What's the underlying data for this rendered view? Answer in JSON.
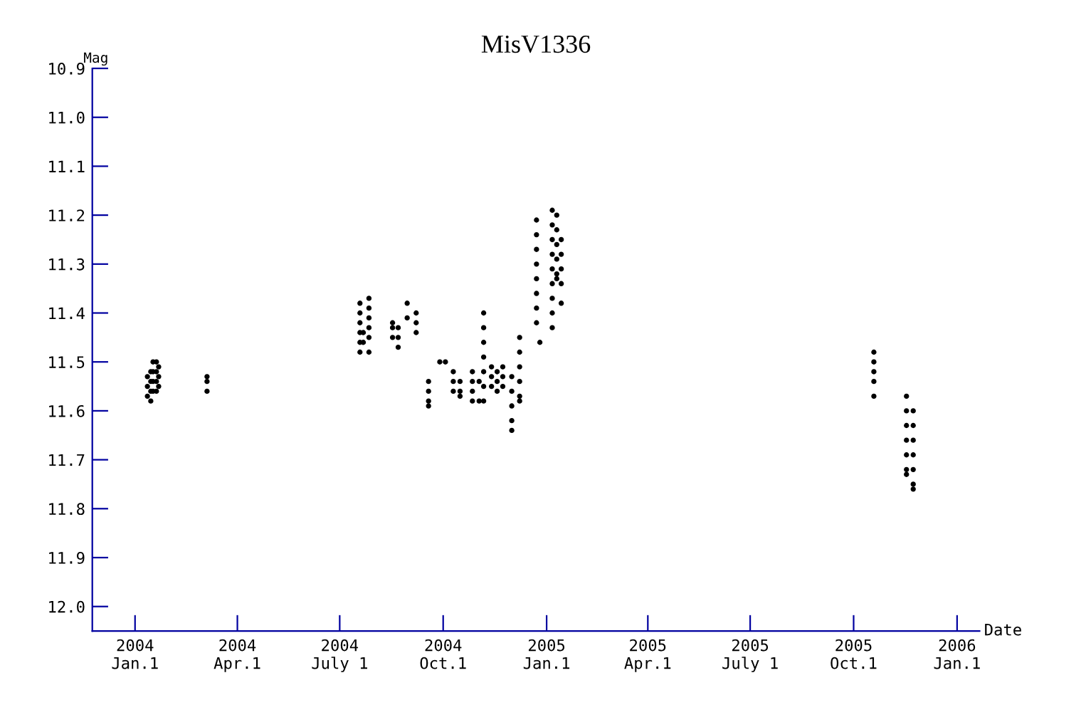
{
  "chart_data": {
    "type": "scatter",
    "title": "MisV1336",
    "xlabel": "Date",
    "ylabel": "Mag",
    "marker": "circle",
    "grid": false,
    "legend": false,
    "xlim": [
      "2003-11-24",
      "2006-01-21"
    ],
    "xticks": [
      {
        "value": "2004-01-01",
        "label": "2004\nJan.1"
      },
      {
        "value": "2004-04-01",
        "label": "2004\nApr.1"
      },
      {
        "value": "2004-07-01",
        "label": "2004\nJuly 1"
      },
      {
        "value": "2004-10-01",
        "label": "2004\nOct.1"
      },
      {
        "value": "2005-01-01",
        "label": "2005\nJan.1"
      },
      {
        "value": "2005-04-01",
        "label": "2005\nApr.1"
      },
      {
        "value": "2005-07-01",
        "label": "2005\nJuly 1"
      },
      {
        "value": "2005-10-01",
        "label": "2005\nOct.1"
      },
      {
        "value": "2006-01-01",
        "label": "2006\nJan.1"
      }
    ],
    "ylim": [
      12.05,
      10.9
    ],
    "yticks": [
      10.9,
      {
        "value": 11,
        "label": "11.0"
      },
      11.1,
      11.2,
      11.3,
      11.4,
      11.5,
      11.6,
      11.7,
      11.8,
      11.9,
      {
        "value": 12,
        "label": "12.0"
      }
    ],
    "series": [
      {
        "color": "#000000",
        "x": [
          "2004-01-12",
          "2004-01-12",
          "2004-01-12",
          "2004-01-15",
          "2004-01-15",
          "2004-01-15",
          "2004-01-15",
          "2004-01-17",
          "2004-01-17",
          "2004-01-17",
          "2004-01-17",
          "2004-01-20",
          "2004-01-20",
          "2004-01-20",
          "2004-01-20",
          "2004-01-22",
          "2004-01-22",
          "2004-01-22",
          "2004-03-05",
          "2004-03-05",
          "2004-03-05",
          "2004-07-19",
          "2004-07-19",
          "2004-07-19",
          "2004-07-19",
          "2004-07-19",
          "2004-07-19",
          "2004-07-22",
          "2004-07-22",
          "2004-07-27",
          "2004-07-27",
          "2004-07-27",
          "2004-07-27",
          "2004-07-27",
          "2004-07-27",
          "2004-08-17",
          "2004-08-17",
          "2004-08-17",
          "2004-08-22",
          "2004-08-22",
          "2004-08-22",
          "2004-08-30",
          "2004-08-30",
          "2004-09-07",
          "2004-09-07",
          "2004-09-07",
          "2004-09-18",
          "2004-09-18",
          "2004-09-18",
          "2004-09-18",
          "2004-09-28",
          "2004-10-03",
          "2004-10-10",
          "2004-10-10",
          "2004-10-10",
          "2004-10-16",
          "2004-10-16",
          "2004-10-16",
          "2004-10-27",
          "2004-10-27",
          "2004-10-27",
          "2004-10-27",
          "2004-11-02",
          "2004-11-02",
          "2004-11-06",
          "2004-11-06",
          "2004-11-06",
          "2004-11-06",
          "2004-11-06",
          "2004-11-06",
          "2004-11-06",
          "2004-11-13",
          "2004-11-13",
          "2004-11-13",
          "2004-11-18",
          "2004-11-18",
          "2004-11-18",
          "2004-11-23",
          "2004-11-23",
          "2004-11-23",
          "2004-12-01",
          "2004-12-01",
          "2004-12-01",
          "2004-12-01",
          "2004-12-01",
          "2004-12-08",
          "2004-12-08",
          "2004-12-08",
          "2004-12-08",
          "2004-12-08",
          "2004-12-08",
          "2004-12-23",
          "2004-12-23",
          "2004-12-23",
          "2004-12-23",
          "2004-12-23",
          "2004-12-23",
          "2004-12-23",
          "2004-12-23",
          "2004-12-26",
          "2005-01-06",
          "2005-01-06",
          "2005-01-06",
          "2005-01-06",
          "2005-01-06",
          "2005-01-06",
          "2005-01-06",
          "2005-01-06",
          "2005-01-06",
          "2005-01-10",
          "2005-01-10",
          "2005-01-10",
          "2005-01-10",
          "2005-01-10",
          "2005-01-10",
          "2005-01-14",
          "2005-01-14",
          "2005-01-14",
          "2005-01-14",
          "2005-01-14",
          "2005-10-19",
          "2005-10-19",
          "2005-10-19",
          "2005-10-19",
          "2005-10-19",
          "2005-11-17",
          "2005-11-17",
          "2005-11-17",
          "2005-11-17",
          "2005-11-17",
          "2005-11-17",
          "2005-11-17",
          "2005-11-23",
          "2005-11-23",
          "2005-11-23",
          "2005-11-23",
          "2005-11-23",
          "2005-11-23",
          "2005-11-23"
        ],
        "values": [
          11.53,
          11.55,
          11.57,
          11.52,
          11.54,
          11.56,
          11.58,
          11.5,
          11.52,
          11.54,
          11.56,
          11.5,
          11.52,
          11.54,
          11.56,
          11.51,
          11.53,
          11.55,
          11.53,
          11.54,
          11.56,
          11.38,
          11.4,
          11.42,
          11.44,
          11.46,
          11.48,
          11.44,
          11.46,
          11.37,
          11.39,
          11.41,
          11.43,
          11.45,
          11.48,
          11.42,
          11.43,
          11.45,
          11.43,
          11.45,
          11.47,
          11.38,
          11.41,
          11.4,
          11.42,
          11.44,
          11.54,
          11.56,
          11.58,
          11.59,
          11.5,
          11.5,
          11.52,
          11.54,
          11.56,
          11.54,
          11.56,
          11.57,
          11.52,
          11.54,
          11.56,
          11.58,
          11.54,
          11.58,
          11.4,
          11.43,
          11.46,
          11.49,
          11.52,
          11.55,
          11.58,
          11.51,
          11.53,
          11.55,
          11.52,
          11.54,
          11.56,
          11.51,
          11.53,
          11.55,
          11.53,
          11.56,
          11.59,
          11.62,
          11.64,
          11.45,
          11.48,
          11.51,
          11.54,
          11.57,
          11.58,
          11.21,
          11.24,
          11.27,
          11.3,
          11.33,
          11.36,
          11.39,
          11.42,
          11.46,
          11.19,
          11.22,
          11.25,
          11.28,
          11.31,
          11.34,
          11.37,
          11.4,
          11.43,
          11.2,
          11.23,
          11.26,
          11.29,
          11.32,
          11.33,
          11.25,
          11.28,
          11.31,
          11.34,
          11.38,
          11.48,
          11.5,
          11.52,
          11.54,
          11.57,
          11.57,
          11.6,
          11.63,
          11.66,
          11.69,
          11.72,
          11.73,
          11.6,
          11.63,
          11.66,
          11.69,
          11.72,
          11.75,
          11.76
        ]
      }
    ]
  }
}
